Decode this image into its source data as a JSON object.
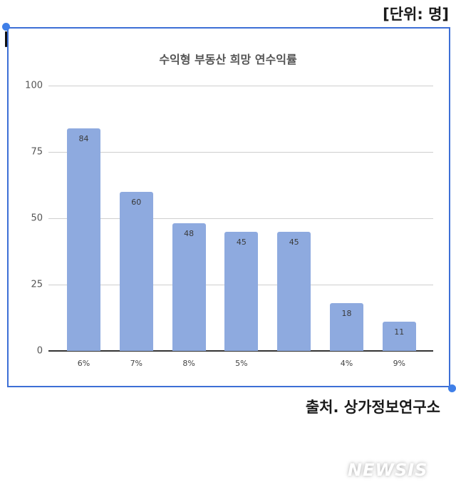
{
  "header": {
    "unit_label": "[단위: 명]"
  },
  "footer": {
    "source_label": "출처. 상가정보연구소",
    "watermark": "NEWSIS"
  },
  "chart_data": {
    "type": "bar",
    "title": "수익형 부동산 희망 연수익률",
    "xlabel": "",
    "ylabel": "",
    "ylim": [
      0,
      100
    ],
    "yticks": [
      0,
      25,
      50,
      75,
      100
    ],
    "grid": true,
    "legend": null,
    "categories": [
      "6%",
      "7%",
      "8%",
      "5%",
      "",
      "4%",
      "9%"
    ],
    "values": [
      84,
      60,
      48,
      45,
      45,
      18,
      11
    ],
    "bar_color": "#8eaadf"
  },
  "colors": {
    "frame": "#3d6fd6",
    "handle": "#3f7fe8",
    "bar": "#8eaadf"
  }
}
